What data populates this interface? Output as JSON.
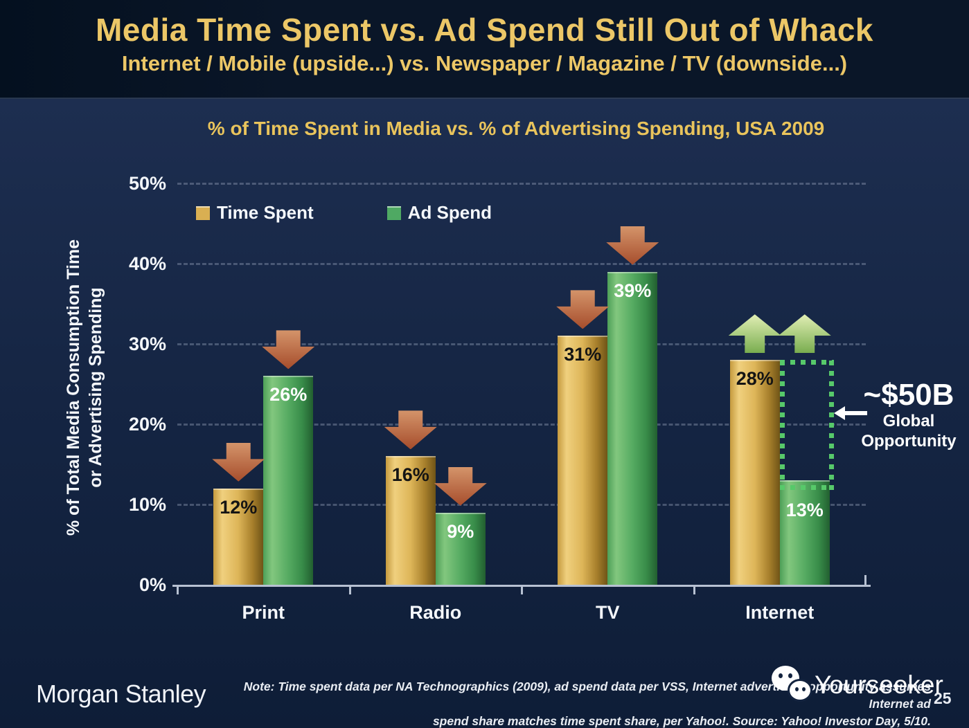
{
  "slide": {
    "title": "Media Time Spent vs. Ad Spend Still Out of Whack",
    "subtitle": "Internet / Mobile (upside...) vs. Newspaper / Magazine / TV (downside...)",
    "page_number": "25"
  },
  "chart_data": {
    "type": "bar",
    "title": "% of Time Spent in Media vs. % of Advertising Spending, USA 2009",
    "categories": [
      "Print",
      "Radio",
      "TV",
      "Internet"
    ],
    "series": [
      {
        "name": "Time Spent",
        "values": [
          12,
          16,
          31,
          28
        ],
        "label_color": "#141414",
        "gradient": [
          "#c59a3e",
          "#f0d07e",
          "#ddb558",
          "#a8802c",
          "#6f5417"
        ],
        "swatch_color": "#d9af52"
      },
      {
        "name": "Ad Spend",
        "values": [
          26,
          9,
          39,
          13
        ],
        "label_color": "#ffffff",
        "gradient": [
          "#4d9f58",
          "#82c77e",
          "#56ab62",
          "#388c49",
          "#225f30"
        ],
        "swatch_color": "#4fa963"
      }
    ],
    "ylabel_line1": "% of Total Media Consumption Time",
    "ylabel_line2": "or Advertising Spending",
    "yticks": [
      0,
      10,
      20,
      30,
      40,
      50
    ],
    "ylim": [
      0,
      50
    ],
    "grid": "dashed horizontal lines every 10%",
    "legend_position": "top-left inside plot",
    "trend_arrows": [
      {
        "category": "Print",
        "series": "Time Spent",
        "direction": "down",
        "anchor_pct": 12
      },
      {
        "category": "Print",
        "series": "Ad Spend",
        "direction": "down",
        "anchor_pct": 26
      },
      {
        "category": "Radio",
        "series": "Time Spent",
        "direction": "down",
        "anchor_pct": 16
      },
      {
        "category": "Radio",
        "series": "Ad Spend",
        "direction": "down",
        "anchor_pct": 9
      },
      {
        "category": "TV",
        "series": "Time Spent",
        "direction": "down",
        "anchor_pct": 31
      },
      {
        "category": "TV",
        "series": "Ad Spend",
        "direction": "down",
        "anchor_pct": 39
      },
      {
        "category": "Internet",
        "series": "Time Spent",
        "direction": "up",
        "anchor_pct": 28
      },
      {
        "category": "Internet",
        "series": "Ad Spend",
        "direction": "up",
        "anchor_pct": 28
      }
    ],
    "opportunity": {
      "category": "Internet",
      "series": "Ad Spend",
      "from_pct": 13,
      "to_pct": 28,
      "label": "~$50B",
      "sublabel_line1": "Global",
      "sublabel_line2": "Opportunity"
    }
  },
  "footer": {
    "logo_text": "Morgan Stanley",
    "note_line1": "Note: Time spent data per NA Technographics (2009), ad spend data per VSS, Internet advertising opportunity assumes Internet ad",
    "note_line2": "spend share matches time spent share, per Yahoo!. Source: Yahoo! Investor Day, 5/10.",
    "watermark": "Yourseeker"
  },
  "colors": {
    "title_gold": "#ecc767",
    "header_background": "#0a1628",
    "body_background": "#152543",
    "down_arrow_top": "#d4946a",
    "down_arrow_bottom": "#a64d2c",
    "up_arrow_top": "#e2efb5",
    "up_arrow_bottom": "#79ad4f",
    "opportunity_border": "#57c96a",
    "axis_color": "#b7c1d2"
  }
}
